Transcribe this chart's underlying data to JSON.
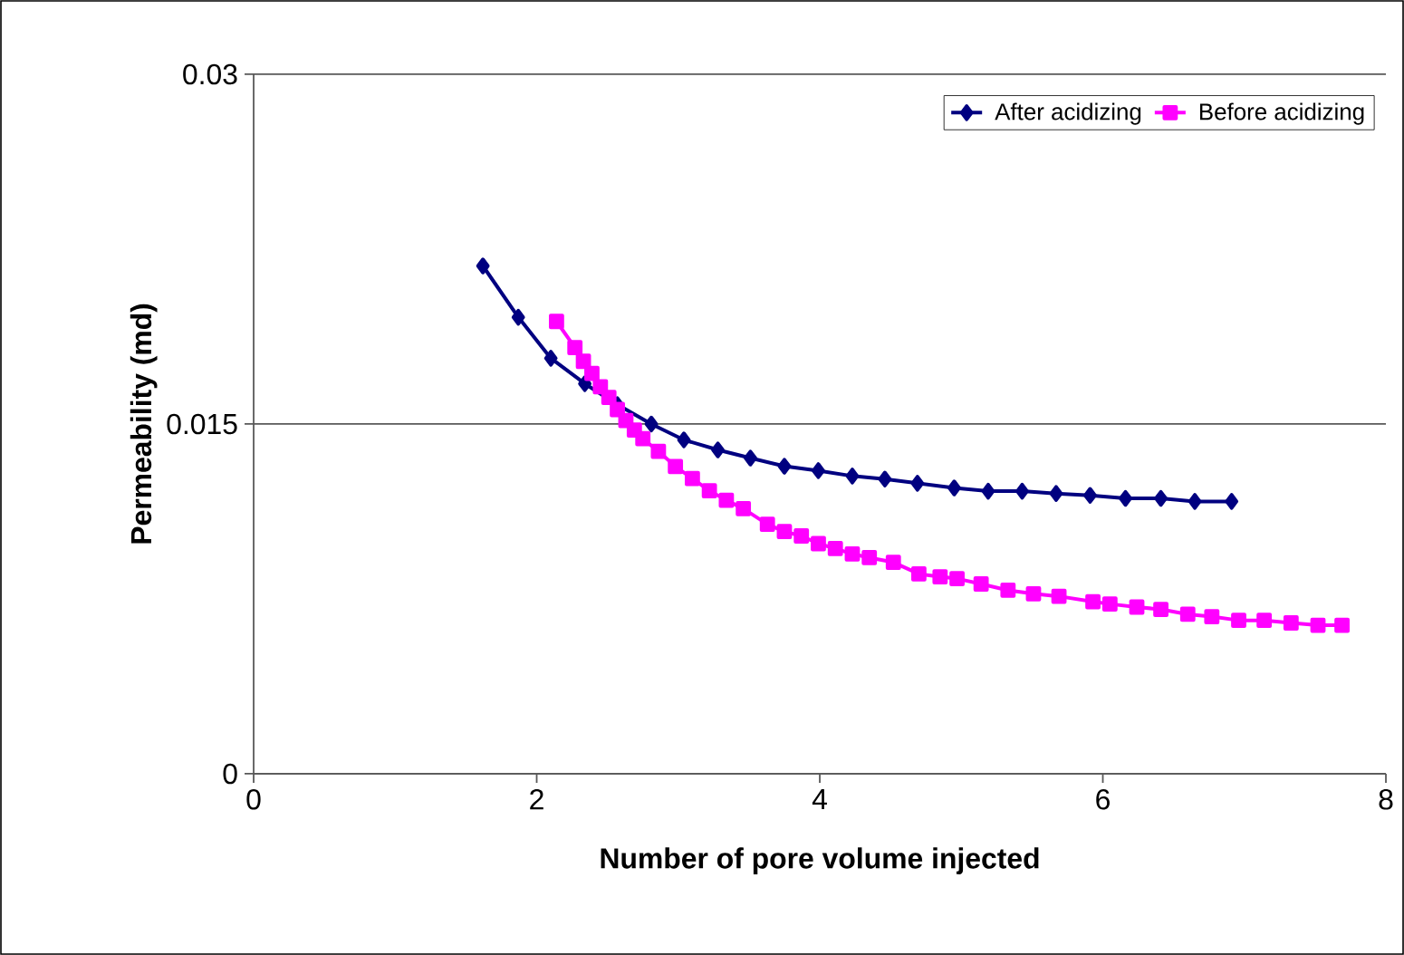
{
  "chart_data": {
    "type": "line",
    "xlabel": "Number of pore volume injected",
    "ylabel": "Permeability (md)",
    "xlim": [
      0,
      8
    ],
    "xticks": [
      0,
      2,
      4,
      6,
      8
    ],
    "ylim": [
      0,
      0.03
    ],
    "yticks": [
      0,
      0.015,
      0.03
    ],
    "grid": "y",
    "legend": "top right",
    "line_style": "solid",
    "series": [
      {
        "name": "After acidizing",
        "color": "#000080",
        "marker": "diamond",
        "x": [
          1.62,
          1.87,
          2.1,
          2.34,
          2.57,
          2.81,
          3.04,
          3.28,
          3.51,
          3.75,
          3.99,
          4.23,
          4.46,
          4.69,
          4.95,
          5.19,
          5.43,
          5.67,
          5.91,
          6.16,
          6.41,
          6.65,
          6.91
        ],
        "values": [
          0.02178,
          0.01958,
          0.01782,
          0.01673,
          0.01583,
          0.015,
          0.01432,
          0.01389,
          0.01354,
          0.01319,
          0.013,
          0.01277,
          0.01264,
          0.01246,
          0.01226,
          0.01212,
          0.01212,
          0.01202,
          0.01194,
          0.01181,
          0.01181,
          0.01168,
          0.01168
        ]
      },
      {
        "name": "Before acidizing",
        "color": "#ff00ff",
        "marker": "square",
        "x": [
          2.14,
          2.27,
          2.33,
          2.39,
          2.45,
          2.51,
          2.57,
          2.63,
          2.69,
          2.75,
          2.86,
          2.98,
          3.1,
          3.22,
          3.34,
          3.46,
          3.63,
          3.75,
          3.87,
          3.99,
          4.11,
          4.23,
          4.35,
          4.52,
          4.7,
          4.85,
          4.97,
          5.14,
          5.33,
          5.51,
          5.69,
          5.93,
          6.05,
          6.24,
          6.41,
          6.6,
          6.77,
          6.96,
          7.14,
          7.33,
          7.52,
          7.69
        ],
        "values": [
          0.0194,
          0.01828,
          0.01769,
          0.01717,
          0.0166,
          0.01614,
          0.01562,
          0.01515,
          0.01474,
          0.01437,
          0.01383,
          0.01318,
          0.01266,
          0.01214,
          0.01173,
          0.01137,
          0.0107,
          0.01039,
          0.0102,
          0.00987,
          0.00966,
          0.00943,
          0.00927,
          0.00907,
          0.00857,
          0.00845,
          0.00837,
          0.00814,
          0.00787,
          0.00772,
          0.00761,
          0.00738,
          0.00728,
          0.00715,
          0.00705,
          0.00684,
          0.00674,
          0.00658,
          0.00658,
          0.00647,
          0.00637,
          0.00637
        ]
      }
    ]
  }
}
